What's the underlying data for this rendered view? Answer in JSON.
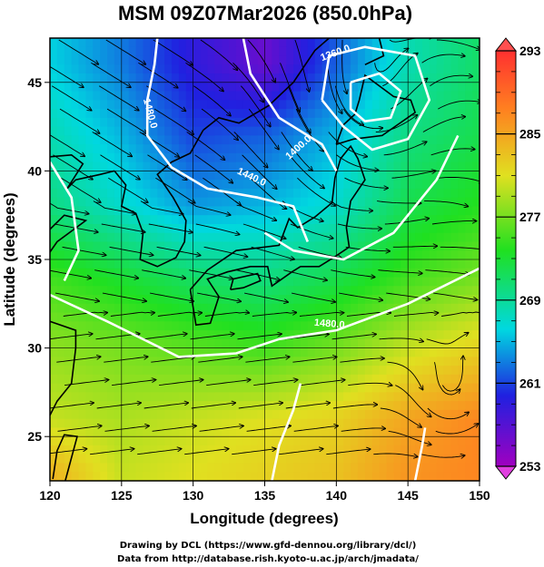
{
  "chart_data": {
    "type": "heatmap",
    "title": "MSM 09Z07Mar2026 (850.0hPa)",
    "xlabel": "Longitude (degrees)",
    "ylabel": "Latitude  (degrees)",
    "xlim": [
      120,
      150
    ],
    "ylim": [
      22.5,
      47.5
    ],
    "x_ticks": [
      120,
      125,
      130,
      135,
      140,
      145,
      150
    ],
    "y_ticks": [
      25,
      30,
      35,
      40,
      45
    ],
    "grid": true,
    "colorbar": {
      "min": 253,
      "max": 293,
      "ticks": [
        253,
        261,
        269,
        277,
        285,
        293
      ],
      "placement": "right"
    },
    "temperature_field_K": {
      "lat": [
        46,
        42,
        38,
        34,
        30,
        26,
        23
      ],
      "lon": [
        120,
        125,
        130,
        135,
        140,
        145,
        150
      ],
      "values": [
        [
          266,
          263,
          259,
          256,
          262,
          268,
          271
        ],
        [
          268,
          265,
          261,
          262,
          265,
          270,
          272
        ],
        [
          270,
          267,
          264,
          265,
          267,
          272,
          274
        ],
        [
          275,
          273,
          271,
          270,
          272,
          275,
          277
        ],
        [
          278,
          277,
          276,
          275,
          277,
          280,
          282
        ],
        [
          280,
          279,
          280,
          281,
          282,
          285,
          287
        ],
        [
          284,
          280,
          281,
          282,
          283,
          286,
          287
        ]
      ]
    },
    "contours_m": [
      {
        "label": "1480.0",
        "lon": 126.8,
        "lat": 43.2,
        "angle": 75
      },
      {
        "label": "1400.0",
        "lon": 137.5,
        "lat": 41.2,
        "angle": -42
      },
      {
        "label": "1440.0",
        "lon": 134.0,
        "lat": 39.5,
        "angle": 25
      },
      {
        "label": "1360.0",
        "lon": 140.0,
        "lat": 46.5,
        "angle": -20
      },
      {
        "label": "1480.0",
        "lon": 139.5,
        "lat": 31.2,
        "angle": 5
      }
    ],
    "low_center": {
      "lon": 141.5,
      "lat": 43.0
    },
    "cyclone_center": {
      "lon": 148.0,
      "lat": 27.0
    }
  },
  "credits": [
    "Drawing by DCL (https://www.gfd-dennou.org/library/dcl/)",
    "Data from http://database.rish.kyoto-u.ac.jp/arch/jmadata/"
  ],
  "colors": {
    "colorbar_stops": [
      "#a000c0",
      "#2020e0",
      "#00d8e0",
      "#20e020",
      "#e0e020",
      "#ff8020",
      "#ff3030"
    ],
    "contour": "#ffffff",
    "coastline": "#000000",
    "streamline": "#000000"
  }
}
